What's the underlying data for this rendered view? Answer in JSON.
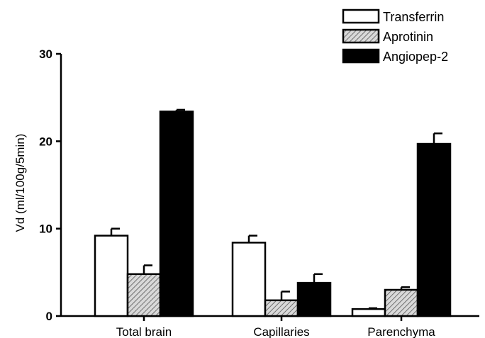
{
  "chart_data": {
    "type": "bar",
    "title": "",
    "xlabel": "",
    "ylabel": "Vd (ml/100g/5min)",
    "ylim": [
      0,
      30
    ],
    "yticks": [
      0,
      10,
      20,
      30
    ],
    "grid": false,
    "legend_position": "top-right",
    "categories": [
      "Total brain",
      "Capillaries",
      "Parenchyma"
    ],
    "series": [
      {
        "name": "Transferrin",
        "fill": "white",
        "values": [
          9.2,
          8.4,
          0.8
        ],
        "errors": [
          0.8,
          0.8,
          0.1
        ]
      },
      {
        "name": "Aprotinin",
        "fill": "hatched",
        "values": [
          4.8,
          1.8,
          3.0
        ],
        "errors": [
          1.0,
          1.0,
          0.3
        ]
      },
      {
        "name": "Angiopep-2",
        "fill": "black",
        "values": [
          23.4,
          3.8,
          19.7
        ],
        "errors": [
          0.2,
          1.0,
          1.2
        ]
      }
    ],
    "colors": {
      "stroke": "#000000",
      "black": "#000000",
      "white": "#ffffff",
      "hatch_bg": "#d9d9d9",
      "hatch_line": "#555555"
    }
  }
}
